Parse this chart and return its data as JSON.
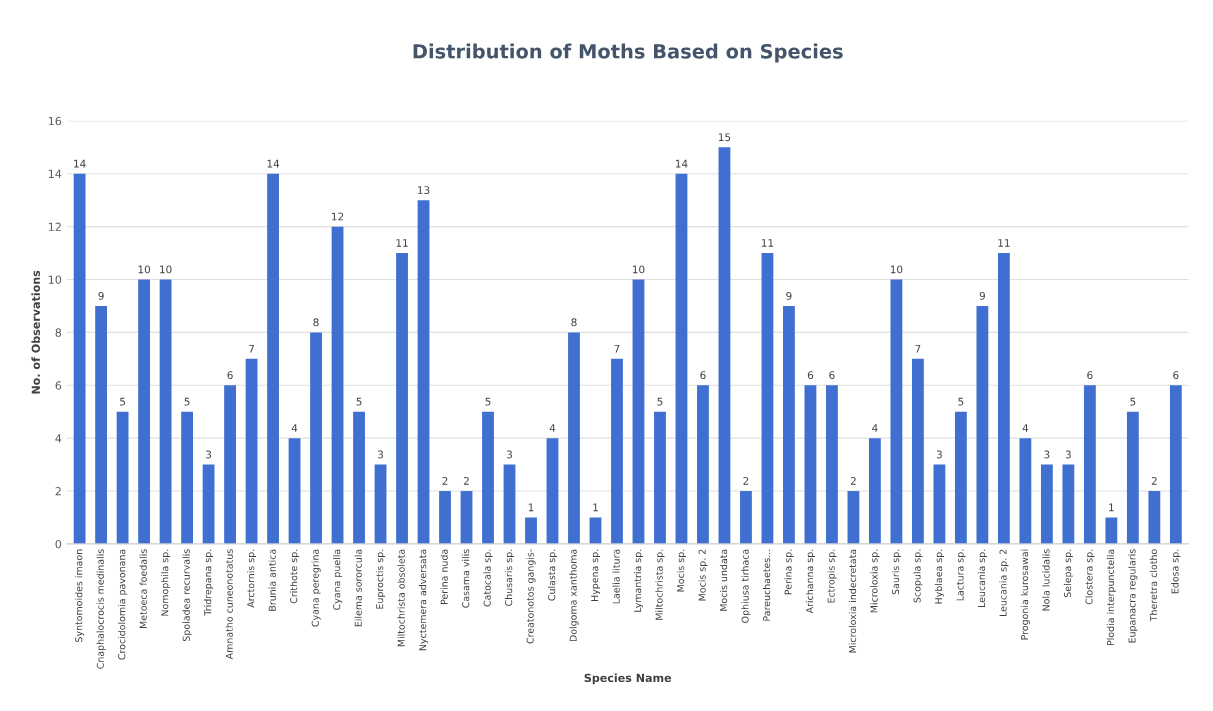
{
  "chart_data": {
    "type": "bar",
    "title": "Distribution of Moths Based on Species",
    "xlabel": "Species Name",
    "ylabel": "No. of Observations",
    "categories": [
      "Syntomoides imaon",
      "Cnaphalocrocis medinalis",
      "Crocidolomia pavonana",
      "Metoeca foedalis",
      "Nomophila sp.",
      "Spoladea recurvalis",
      "Tridrepana sp.",
      "Amnatho cuneonotatus",
      "Arctornis sp.",
      "Brunia antica",
      "Crithote sp.",
      "Cyana peregrina",
      "Cyana puella",
      "Eilema sororcula",
      "Euproctis sp.",
      "Miltochrista obsoleta",
      "Nyctemera adversata",
      "Perina nuda",
      "Casama vilis",
      "Catocala sp.",
      "Chusaris sp.",
      "Creatonotos gangis-",
      "Culasta sp.",
      "Dolgoma xanthoma",
      "Hypena sp.",
      "Laelia litura",
      "Lymantria sp.",
      "Miltochrista sp.",
      "Mocis sp.",
      "Mocis sp. 2",
      "Mocis undata",
      "Ophiusa tirhaca",
      "Pareuchaetes...",
      "Perina sp.",
      "Arichanna sp.",
      "Ectropis sp.",
      "Microloxia indecretata",
      "Microloxia sp.",
      "Sauris sp.",
      "Scopula sp.",
      "Hyblaea sp.",
      "Lactura sp.",
      "Leucania sp.",
      "Leucania sp. 2",
      "Progonia kurosawai",
      "Nola lucidalis",
      "Selepa sp.",
      "Clostera sp.",
      "Plodia interpunctella",
      "Eupanacra regularis",
      "Theretra clotho",
      "Edosa sp."
    ],
    "values": [
      14,
      9,
      5,
      10,
      10,
      5,
      3,
      6,
      7,
      14,
      4,
      8,
      12,
      5,
      3,
      11,
      13,
      2,
      2,
      5,
      3,
      1,
      4,
      8,
      1,
      7,
      10,
      5,
      14,
      6,
      15,
      2,
      11,
      9,
      6,
      6,
      2,
      4,
      10,
      7,
      3,
      5,
      9,
      11,
      4,
      3,
      3,
      6,
      1,
      5,
      2,
      6
    ],
    "color": "#3f6fd0",
    "ylim": [
      0,
      16
    ],
    "yticks": [
      0,
      2,
      4,
      6,
      8,
      10,
      12,
      14,
      16
    ],
    "grid": "y",
    "data_labels": true
  }
}
